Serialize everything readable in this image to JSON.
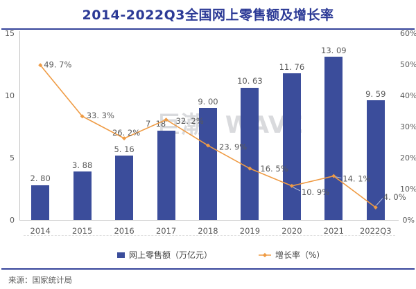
{
  "header": {
    "title": "2014-2022Q3全国网上零售额及增长率"
  },
  "watermark": "巨潮 WAVE",
  "chart_data": {
    "type": "bar",
    "subtype": "combo-bar-line-dual-axis",
    "title": "2014-2022Q3全国网上零售额及增长率",
    "categories": [
      "2014",
      "2015",
      "2016",
      "2017",
      "2018",
      "2019",
      "2020",
      "2021",
      "2022Q3"
    ],
    "series": [
      {
        "name": "网上零售额（万亿元）",
        "kind": "bar",
        "axis": "left",
        "color": "#3b4d9b",
        "values": [
          2.8,
          3.88,
          5.16,
          7.18,
          9.0,
          10.63,
          11.76,
          13.09,
          9.59
        ],
        "labels": [
          "2. 80",
          "3. 88",
          "5. 16",
          "7. 18",
          "9. 00",
          "10. 63",
          "11. 76",
          "13. 09",
          "9. 59"
        ]
      },
      {
        "name": "增长率（%）",
        "kind": "line",
        "axis": "right",
        "color": "#ef9b44",
        "values": [
          49.7,
          33.3,
          26.2,
          32.2,
          23.9,
          16.5,
          10.9,
          14.1,
          4.0
        ],
        "labels": [
          "49. 7%",
          "33. 3%",
          "26. 2%",
          "32. 2%",
          "23. 9%",
          "16. 5%",
          "10. 9%",
          "14. 1%",
          "4. 0%"
        ]
      }
    ],
    "left_axis": {
      "min": 0,
      "max": 15,
      "ticks": [
        "15",
        "10",
        "5",
        "0"
      ]
    },
    "right_axis": {
      "min": 0,
      "max": 60,
      "ticks": [
        "60%",
        "50%",
        "40%",
        "30%",
        "20%",
        "10%",
        "0%"
      ]
    },
    "grid": false,
    "legend_position": "bottom"
  },
  "legend": {
    "items": [
      {
        "label": "网上零售额（万亿元）"
      },
      {
        "label": "增长率（%）"
      }
    ]
  },
  "footer": {
    "source": "来源：国家统计局"
  }
}
